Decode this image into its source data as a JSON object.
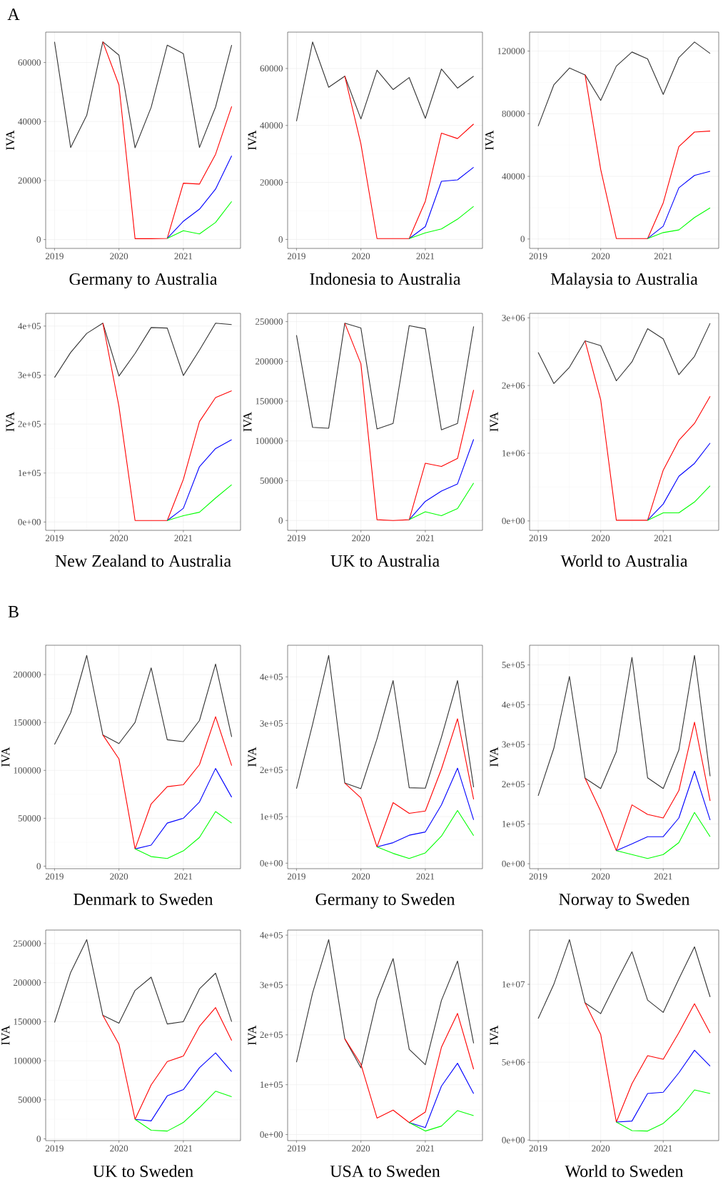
{
  "chart_data": [
    {
      "type": "line",
      "xlabel": "Germany to Australia",
      "ylabel": "IVA",
      "annotations": [
        "A"
      ],
      "grid": true,
      "x": [
        2019,
        2019.25,
        2019.5,
        2019.75,
        2020,
        2020.25,
        2020.5,
        2020.75,
        2021,
        2021.25,
        2021.5,
        2021.75
      ],
      "xlim": [
        2018.8625,
        2021.8875
      ],
      "xticks": [
        2019,
        2020,
        2021
      ],
      "ylim": [
        -3000,
        70300
      ],
      "yticks": [
        0,
        20000,
        40000,
        60000
      ],
      "series": [
        {
          "color": "#333333",
          "values": [
            67000,
            31200,
            42100,
            67000,
            62500,
            31100,
            44800,
            65900,
            63000,
            31200,
            44900,
            65900
          ]
        },
        {
          "color": "#ff0000",
          "values": [
            null,
            null,
            null,
            67000,
            52400,
            300,
            300,
            400,
            19100,
            18800,
            28900,
            45100
          ]
        },
        {
          "color": "#0000ff",
          "values": [
            null,
            null,
            null,
            null,
            null,
            null,
            null,
            400,
            6200,
            10300,
            17100,
            28400
          ]
        },
        {
          "color": "#00ff00",
          "values": [
            null,
            null,
            null,
            null,
            null,
            null,
            null,
            400,
            3000,
            1900,
            5800,
            12900
          ]
        }
      ]
    },
    {
      "type": "line",
      "xlabel": "Indonesia to Australia",
      "ylabel": "IVA",
      "grid": true,
      "x": [
        2019,
        2019.25,
        2019.5,
        2019.75,
        2020,
        2020.25,
        2020.5,
        2020.75,
        2021,
        2021.25,
        2021.5,
        2021.75
      ],
      "xlim": [
        2018.8625,
        2021.8875
      ],
      "xticks": [
        2019,
        2020,
        2021
      ],
      "ylim": [
        -3150,
        72750
      ],
      "yticks": [
        0,
        20000,
        40000,
        60000
      ],
      "series": [
        {
          "color": "#333333",
          "values": [
            41500,
            69300,
            53400,
            57300,
            42300,
            59400,
            52600,
            56800,
            42500,
            59800,
            53100,
            57300
          ]
        },
        {
          "color": "#ff0000",
          "values": [
            null,
            null,
            null,
            57300,
            33500,
            300,
            300,
            300,
            13400,
            37300,
            35400,
            40500
          ]
        },
        {
          "color": "#0000ff",
          "values": [
            null,
            null,
            null,
            null,
            null,
            null,
            null,
            300,
            4500,
            20400,
            20900,
            25300
          ]
        },
        {
          "color": "#00ff00",
          "values": [
            null,
            null,
            null,
            null,
            null,
            null,
            null,
            300,
            2300,
            3700,
            7100,
            11600
          ]
        }
      ]
    },
    {
      "type": "line",
      "xlabel": "Malaysia to Australia",
      "ylabel": "IVA",
      "grid": true,
      "x": [
        2019,
        2019.25,
        2019.5,
        2019.75,
        2020,
        2020.25,
        2020.5,
        2020.75,
        2021,
        2021.25,
        2021.5,
        2021.75
      ],
      "xlim": [
        2018.8625,
        2021.8875
      ],
      "xticks": [
        2019,
        2020,
        2021
      ],
      "ylim": [
        -6000,
        132100
      ],
      "yticks": [
        0,
        40000,
        80000,
        120000
      ],
      "series": [
        {
          "color": "#333333",
          "values": [
            72100,
            98400,
            109200,
            104800,
            88500,
            110400,
            119400,
            115000,
            92300,
            115900,
            125800,
            118500
          ]
        },
        {
          "color": "#ff0000",
          "values": [
            null,
            null,
            null,
            104800,
            44400,
            300,
            300,
            300,
            23100,
            59000,
            68300,
            68900
          ]
        },
        {
          "color": "#0000ff",
          "values": [
            null,
            null,
            null,
            null,
            null,
            null,
            null,
            300,
            8200,
            32700,
            40600,
            43200
          ]
        },
        {
          "color": "#00ff00",
          "values": [
            null,
            null,
            null,
            null,
            null,
            null,
            null,
            300,
            4100,
            5800,
            13700,
            19900
          ]
        }
      ]
    },
    {
      "type": "line",
      "xlabel": "New Zealand to Australia",
      "ylabel": "IVA",
      "grid": true,
      "x": [
        2019,
        2019.25,
        2019.5,
        2019.75,
        2020,
        2020.25,
        2020.5,
        2020.75,
        2021,
        2021.25,
        2021.5,
        2021.75
      ],
      "xlim": [
        2018.8625,
        2021.8875
      ],
      "xticks": [
        2019,
        2020,
        2021
      ],
      "ylim": [
        -17000,
        426000
      ],
      "yticks": [
        {
          "value": 0,
          "label": "0e+00"
        },
        {
          "value": 100000,
          "label": "1e+05"
        },
        {
          "value": 200000,
          "label": "2e+05"
        },
        {
          "value": 300000,
          "label": "3e+05"
        },
        {
          "value": 400000,
          "label": "4e+05"
        }
      ],
      "series": [
        {
          "color": "#333333",
          "values": [
            295000,
            346000,
            385000,
            406000,
            298000,
            344000,
            397000,
            396000,
            299000,
            351000,
            406000,
            403000
          ]
        },
        {
          "color": "#ff0000",
          "values": [
            null,
            null,
            null,
            406000,
            236000,
            3000,
            3000,
            3000,
            87000,
            205000,
            254000,
            268000
          ]
        },
        {
          "color": "#0000ff",
          "values": [
            null,
            null,
            null,
            null,
            null,
            null,
            null,
            3000,
            28000,
            113000,
            150000,
            168000
          ]
        },
        {
          "color": "#00ff00",
          "values": [
            null,
            null,
            null,
            null,
            null,
            null,
            null,
            3000,
            13000,
            20000,
            49000,
            76000
          ]
        }
      ]
    },
    {
      "type": "line",
      "xlabel": "UK to Australia",
      "ylabel": "IVA",
      "grid": true,
      "x": [
        2019,
        2019.25,
        2019.5,
        2019.75,
        2020,
        2020.25,
        2020.5,
        2020.75,
        2021,
        2021.25,
        2021.5,
        2021.75
      ],
      "xlim": [
        2018.8625,
        2021.8875
      ],
      "xticks": [
        2019,
        2020,
        2021
      ],
      "ylim": [
        -12400,
        260400
      ],
      "yticks": [
        0,
        50000,
        100000,
        150000,
        200000,
        250000
      ],
      "series": [
        {
          "color": "#333333",
          "values": [
            233000,
            117000,
            116000,
            248000,
            242000,
            115000,
            122000,
            245000,
            241000,
            114000,
            122000,
            244000
          ]
        },
        {
          "color": "#ff0000",
          "values": [
            null,
            null,
            null,
            248000,
            197000,
            1000,
            0,
            1000,
            72000,
            68000,
            78000,
            164000
          ]
        },
        {
          "color": "#0000ff",
          "values": [
            null,
            null,
            null,
            null,
            null,
            null,
            null,
            1000,
            24000,
            37000,
            46000,
            102000
          ]
        },
        {
          "color": "#00ff00",
          "values": [
            null,
            null,
            null,
            null,
            null,
            null,
            null,
            1000,
            11000,
            6000,
            15000,
            47000
          ]
        }
      ]
    },
    {
      "type": "line",
      "xlabel": "World to Australia",
      "ylabel": "IVA",
      "grid": true,
      "x": [
        2019,
        2019.25,
        2019.5,
        2019.75,
        2020,
        2020.25,
        2020.5,
        2020.75,
        2021,
        2021.25,
        2021.5,
        2021.75
      ],
      "xlim": [
        2018.8625,
        2021.8875
      ],
      "xticks": [
        2019,
        2020,
        2021
      ],
      "ylim": [
        -139000,
        3066000
      ],
      "yticks": [
        {
          "value": 0,
          "label": "0e+00"
        },
        {
          "value": 1000000,
          "label": "1e+06"
        },
        {
          "value": 2000000,
          "label": "2e+06"
        },
        {
          "value": 3000000,
          "label": "3e+06"
        }
      ],
      "series": [
        {
          "color": "#333333",
          "values": [
            2490000,
            2030000,
            2270000,
            2660000,
            2590000,
            2070000,
            2350000,
            2840000,
            2690000,
            2160000,
            2430000,
            2920000
          ]
        },
        {
          "color": "#ff0000",
          "values": [
            null,
            null,
            null,
            2660000,
            1790000,
            10000,
            10000,
            10000,
            750000,
            1190000,
            1440000,
            1840000
          ]
        },
        {
          "color": "#0000ff",
          "values": [
            null,
            null,
            null,
            null,
            null,
            null,
            null,
            10000,
            250000,
            660000,
            850000,
            1150000
          ]
        },
        {
          "color": "#00ff00",
          "values": [
            null,
            null,
            null,
            null,
            null,
            null,
            null,
            10000,
            120000,
            120000,
            280000,
            520000
          ]
        }
      ]
    },
    {
      "type": "line",
      "xlabel": "Denmark to Sweden",
      "ylabel": "IVA",
      "annotations": [
        "B"
      ],
      "grid": true,
      "x": [
        2019,
        2019.25,
        2019.5,
        2019.75,
        2020,
        2020.25,
        2020.5,
        2020.75,
        2021,
        2021.25,
        2021.5,
        2021.75
      ],
      "xlim": [
        2018.8625,
        2021.8875
      ],
      "xticks": [
        2019,
        2020,
        2021
      ],
      "ylim": [
        -2600,
        230600
      ],
      "yticks": [
        0,
        50000,
        100000,
        150000,
        200000
      ],
      "series": [
        {
          "color": "#333333",
          "values": [
            127000,
            160000,
            220000,
            137000,
            128000,
            150000,
            207000,
            132000,
            130000,
            152000,
            211000,
            135000
          ]
        },
        {
          "color": "#ff0000",
          "values": [
            null,
            null,
            null,
            137000,
            112000,
            18000,
            65000,
            83000,
            85000,
            106000,
            156000,
            105000
          ]
        },
        {
          "color": "#0000ff",
          "values": [
            null,
            null,
            null,
            null,
            null,
            18000,
            22000,
            45000,
            50000,
            67000,
            102000,
            72000
          ]
        },
        {
          "color": "#00ff00",
          "values": [
            null,
            null,
            null,
            null,
            null,
            18000,
            10000,
            8000,
            16000,
            30000,
            57000,
            45000
          ]
        }
      ]
    },
    {
      "type": "line",
      "xlabel": "Germany to Sweden",
      "ylabel": "IVA",
      "grid": true,
      "x": [
        2019,
        2019.25,
        2019.5,
        2019.75,
        2020,
        2020.25,
        2020.5,
        2020.75,
        2021,
        2021.25,
        2021.5,
        2021.75
      ],
      "xlim": [
        2018.8625,
        2021.8875
      ],
      "xticks": [
        2019,
        2020,
        2021
      ],
      "ylim": [
        -11800,
        467800
      ],
      "yticks": [
        {
          "value": 0,
          "label": "0e+00"
        },
        {
          "value": 100000,
          "label": "1e+05"
        },
        {
          "value": 200000,
          "label": "2e+05"
        },
        {
          "value": 300000,
          "label": "3e+05"
        },
        {
          "value": 400000,
          "label": "4e+05"
        }
      ],
      "series": [
        {
          "color": "#333333",
          "values": [
            160000,
            298000,
            446000,
            172000,
            160000,
            267000,
            392000,
            162000,
            161000,
            270000,
            392000,
            163000
          ]
        },
        {
          "color": "#ff0000",
          "values": [
            null,
            null,
            null,
            172000,
            140000,
            35000,
            130000,
            107000,
            112000,
            202000,
            310000,
            137000
          ]
        },
        {
          "color": "#0000ff",
          "values": [
            null,
            null,
            null,
            null,
            null,
            35000,
            44000,
            60000,
            67000,
            125000,
            204000,
            93000
          ]
        },
        {
          "color": "#00ff00",
          "values": [
            null,
            null,
            null,
            null,
            null,
            35000,
            21000,
            10000,
            22000,
            58000,
            113000,
            59000
          ]
        }
      ]
    },
    {
      "type": "line",
      "xlabel": "Norway to Sweden",
      "ylabel": "IVA",
      "grid": true,
      "x": [
        2019,
        2019.25,
        2019.5,
        2019.75,
        2020,
        2020.25,
        2020.5,
        2020.75,
        2021,
        2021.25,
        2021.5,
        2021.75
      ],
      "xlim": [
        2018.8625,
        2021.8875
      ],
      "xticks": [
        2019,
        2020,
        2021
      ],
      "ylim": [
        -12500,
        549500
      ],
      "yticks": [
        {
          "value": 0,
          "label": "0e+00"
        },
        {
          "value": 100000,
          "label": "1e+05"
        },
        {
          "value": 200000,
          "label": "2e+05"
        },
        {
          "value": 300000,
          "label": "3e+05"
        },
        {
          "value": 400000,
          "label": "4e+05"
        },
        {
          "value": 500000,
          "label": "5e+05"
        }
      ],
      "series": [
        {
          "color": "#333333",
          "values": [
            171000,
            290000,
            471000,
            215000,
            189000,
            282000,
            519000,
            216000,
            189000,
            286000,
            524000,
            220000
          ]
        },
        {
          "color": "#ff0000",
          "values": [
            null,
            null,
            null,
            215000,
            132000,
            33000,
            148000,
            124000,
            115000,
            184000,
            356000,
            158000
          ]
        },
        {
          "color": "#0000ff",
          "values": [
            null,
            null,
            null,
            null,
            null,
            33000,
            50000,
            68000,
            68000,
            115000,
            233000,
            110000
          ]
        },
        {
          "color": "#00ff00",
          "values": [
            null,
            null,
            null,
            null,
            null,
            33000,
            23000,
            13000,
            23000,
            53000,
            129000,
            68000
          ]
        }
      ]
    },
    {
      "type": "line",
      "xlabel": "UK to Sweden",
      "ylabel": "IVA",
      "grid": true,
      "x": [
        2019,
        2019.25,
        2019.5,
        2019.75,
        2020,
        2020.25,
        2020.5,
        2020.75,
        2021,
        2021.25,
        2021.5,
        2021.75
      ],
      "xlim": [
        2018.8625,
        2021.8875
      ],
      "xticks": [
        2019,
        2020,
        2021
      ],
      "ylim": [
        -2250,
        267250
      ],
      "yticks": [
        0,
        50000,
        100000,
        150000,
        200000,
        250000
      ],
      "series": [
        {
          "color": "#333333",
          "values": [
            149000,
            213000,
            255000,
            158000,
            148000,
            190000,
            207000,
            147000,
            150000,
            192000,
            212000,
            150000
          ]
        },
        {
          "color": "#ff0000",
          "values": [
            null,
            null,
            null,
            158000,
            121000,
            25000,
            69000,
            99000,
            106000,
            144000,
            168000,
            126000
          ]
        },
        {
          "color": "#0000ff",
          "values": [
            null,
            null,
            null,
            null,
            null,
            25000,
            23000,
            55000,
            63000,
            91000,
            110000,
            86000
          ]
        },
        {
          "color": "#00ff00",
          "values": [
            null,
            null,
            null,
            null,
            null,
            25000,
            11000,
            10000,
            21000,
            40000,
            61000,
            54000
          ]
        }
      ]
    },
    {
      "type": "line",
      "xlabel": "USA to Sweden",
      "ylabel": "IVA",
      "grid": true,
      "x": [
        2019,
        2019.25,
        2019.5,
        2019.75,
        2020,
        2020.25,
        2020.5,
        2020.75,
        2021,
        2021.25,
        2021.5,
        2021.75
      ],
      "xlim": [
        2018.8625,
        2021.8875
      ],
      "xticks": [
        2019,
        2020,
        2021
      ],
      "ylim": [
        -12200,
        410200
      ],
      "yticks": [
        {
          "value": 0,
          "label": "0e+00"
        },
        {
          "value": 100000,
          "label": "1e+05"
        },
        {
          "value": 200000,
          "label": "2e+05"
        },
        {
          "value": 300000,
          "label": "3e+05"
        },
        {
          "value": 400000,
          "label": "4e+05"
        }
      ],
      "series": [
        {
          "color": "#333333",
          "values": [
            145000,
            284000,
            391000,
            192000,
            134000,
            271000,
            353000,
            171000,
            140000,
            269000,
            348000,
            183000
          ]
        },
        {
          "color": "#ff0000",
          "values": [
            null,
            null,
            null,
            192000,
            141000,
            33000,
            49000,
            24000,
            45000,
            175000,
            243000,
            131000
          ]
        },
        {
          "color": "#0000ff",
          "values": [
            null,
            null,
            null,
            null,
            null,
            null,
            null,
            24000,
            14000,
            97000,
            143000,
            82000
          ]
        },
        {
          "color": "#00ff00",
          "values": [
            null,
            null,
            null,
            null,
            null,
            null,
            null,
            24000,
            7000,
            17000,
            48000,
            38000
          ]
        }
      ]
    },
    {
      "type": "line",
      "xlabel": "World to Sweden",
      "ylabel": "IVA",
      "grid": true,
      "x": [
        2019,
        2019.25,
        2019.5,
        2019.75,
        2020,
        2020.25,
        2020.5,
        2020.75,
        2021,
        2021.25,
        2021.5,
        2021.75
      ],
      "xlim": [
        2018.8625,
        2021.8875
      ],
      "xticks": [
        2019,
        2020,
        2021
      ],
      "ylim": [
        -35000,
        13485000
      ],
      "yticks": [
        {
          "value": 0,
          "label": "0e+00"
        },
        {
          "value": 5000000,
          "label": "5e+06"
        },
        {
          "value": 10000000,
          "label": "1e+07"
        }
      ],
      "series": [
        {
          "color": "#333333",
          "values": [
            7800000,
            10000000,
            12870000,
            8810000,
            8120000,
            10140000,
            12090000,
            8990000,
            8200000,
            10350000,
            12410000,
            9190000
          ]
        },
        {
          "color": "#ff0000",
          "values": [
            null,
            null,
            null,
            8810000,
            6780000,
            1160000,
            3620000,
            5420000,
            5190000,
            6900000,
            8750000,
            6870000
          ]
        },
        {
          "color": "#0000ff",
          "values": [
            null,
            null,
            null,
            null,
            null,
            1160000,
            1220000,
            2990000,
            3070000,
            4320000,
            5770000,
            4750000
          ]
        },
        {
          "color": "#00ff00",
          "values": [
            null,
            null,
            null,
            null,
            null,
            1160000,
            610000,
            580000,
            1070000,
            1970000,
            3220000,
            2990000
          ]
        }
      ]
    }
  ]
}
